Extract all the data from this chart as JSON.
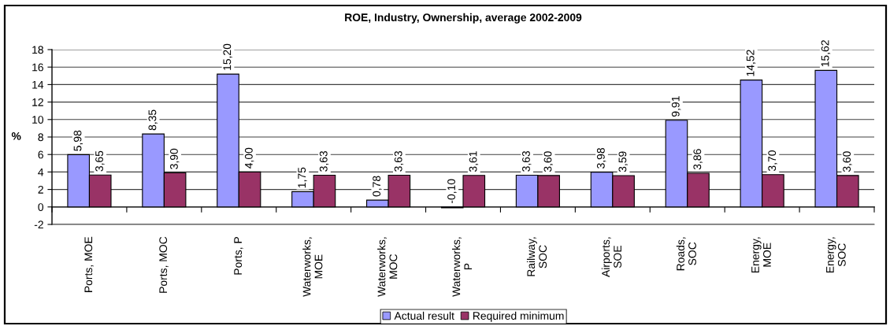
{
  "chart_data": {
    "type": "bar",
    "title": "ROE, Industry, Ownership, average 2002-2009",
    "ylabel": "%",
    "categories": [
      "Ports, MOE",
      "Ports, MOC",
      "Ports, P",
      "Waterworks,\nMOE",
      "Waterworks,\nMOC",
      "Waterworks,\nP",
      "Railway,\nSOC",
      "Airports,\nSOE",
      "Roads,\nSOC",
      "Energy,\nMOE",
      "Energy,\nSOC"
    ],
    "series": [
      {
        "name": "Actual result",
        "color": "#9999ff",
        "values": [
          5.98,
          8.35,
          15.2,
          1.75,
          0.78,
          -0.1,
          3.63,
          3.98,
          9.91,
          14.52,
          15.62
        ],
        "value_labels": [
          "5,98",
          "8,35",
          "15,20",
          "1,75",
          "0,78",
          "-0,10",
          "3,63",
          "3,98",
          "9,91",
          "14,52",
          "15,62"
        ]
      },
      {
        "name": "Required minimum",
        "color": "#993366",
        "values": [
          3.65,
          3.9,
          4.0,
          3.63,
          3.63,
          3.61,
          3.6,
          3.59,
          3.86,
          3.7,
          3.6
        ],
        "value_labels": [
          "3,65",
          "3,90",
          "4,00",
          "3,63",
          "3,63",
          "3,61",
          "3,60",
          "3,59",
          "3,86",
          "3,70",
          "3,60"
        ]
      }
    ],
    "ylim": [
      -2,
      18
    ],
    "yticks": [
      -2,
      0,
      2,
      4,
      6,
      8,
      10,
      12,
      14,
      16,
      18
    ],
    "grid": "y",
    "legend": "bottom"
  }
}
